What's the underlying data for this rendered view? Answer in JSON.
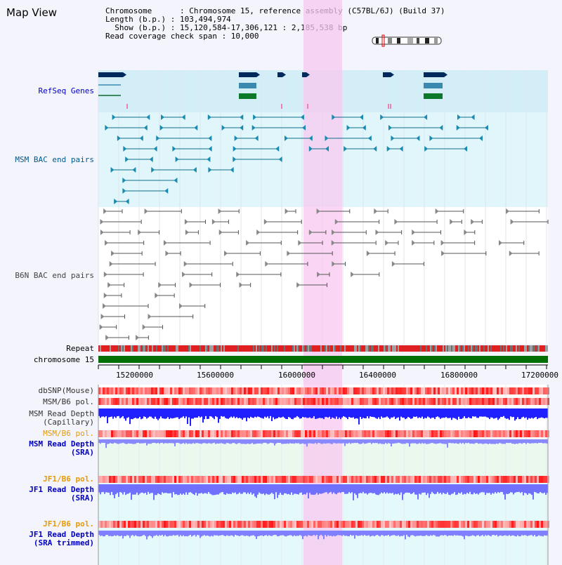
{
  "view": {
    "title": "Map View"
  },
  "info": {
    "line1": "Chromosome      : Chromosome 15, reference assembly (C57BL/6J) (Build 37)",
    "line2": "Length (b.p.) : 103,494,974",
    "line3": "  Show (b.p.) : 15,120,584-17,306,121 : 2,185,538 bp",
    "line4": "Read coverage check span : 10,000"
  },
  "tracks": {
    "refseq": "RefSeq Genes",
    "msm_bac": "MSM BAC end pairs",
    "b6n_bac": "B6N BAC end pairs",
    "repeat": "Repeat",
    "chromosome": "chromosome 15",
    "dbsnp": "dbSNP(Mouse)",
    "msm_b6_pol_1": "MSM/B6 pol.",
    "msm_depth_cap_1": "MSM Read Depth",
    "msm_depth_cap_2": "(Capillary)",
    "msm_b6_pol_2": "MSM/B6 pol.",
    "msm_depth_sra_1": "MSM Read Depth",
    "msm_depth_sra_2": "(SRA)",
    "jf1_b6_pol_1": "JF1/B6 pol.",
    "jf1_depth_sra_1": "JF1 Read Depth",
    "jf1_depth_sra_2": "(SRA)",
    "jf1_b6_pol_2": "JF1/B6 pol.",
    "jf1_depth_trim_1": "JF1 Read Depth",
    "jf1_depth_trim_2": "(SRA trimmed)"
  },
  "axis": {
    "ticks": [
      "15200000",
      "15600000",
      "16000000",
      "16400000",
      "16800000",
      "17200000"
    ]
  },
  "colors": {
    "refseq_label": "#0000c0",
    "msm_label": "#005a8a",
    "orange_label": "#e89a00",
    "blue_label": "#0000c0",
    "highlight": "#f8c8f0",
    "depth_blue": "#3030ff",
    "bac_teal": "#0e6e8c"
  }
}
